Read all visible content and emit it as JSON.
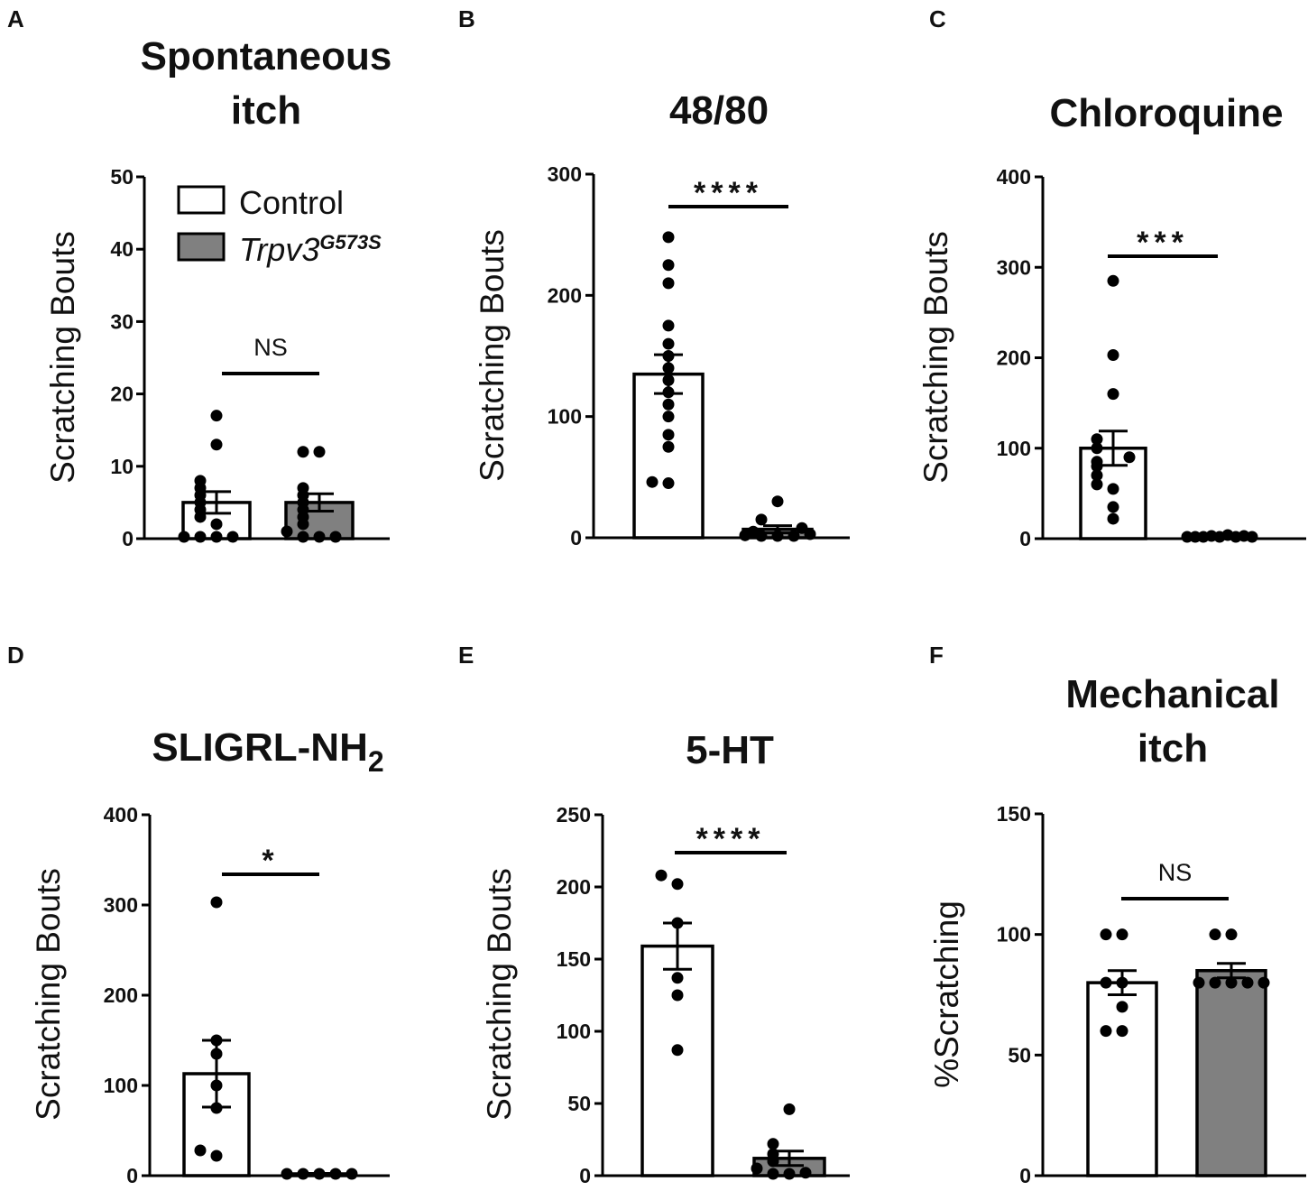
{
  "legend": {
    "control_label": "Control",
    "mutant_base": "Trpv3",
    "mutant_sup": "G573S",
    "colors": {
      "control": "#ffffff",
      "mutant": "#808080"
    }
  },
  "chart_data": [
    {
      "panel": "A",
      "type": "bar",
      "title_lines": [
        "Spontaneous",
        "itch"
      ],
      "ylabel": "Scratching Bouts",
      "ylim": [
        0,
        50
      ],
      "yticks": [
        0,
        10,
        20,
        30,
        40,
        50
      ],
      "categories": [
        "Control",
        "Trpv3G573S"
      ],
      "series": [
        {
          "name": "Control",
          "mean": 5,
          "sem": 1.5,
          "points": [
            0,
            0,
            0,
            0,
            2,
            3,
            4,
            5,
            6,
            7,
            8,
            13,
            17
          ]
        },
        {
          "name": "Trpv3G573S",
          "mean": 5,
          "sem": 1.2,
          "points": [
            0,
            0,
            0,
            1,
            2,
            3,
            4,
            5,
            6,
            7,
            12,
            12
          ]
        }
      ],
      "significance": "NS"
    },
    {
      "panel": "B",
      "type": "bar",
      "title_lines": [
        "48/80"
      ],
      "ylabel": "Scratching Bouts",
      "ylim": [
        0,
        300
      ],
      "yticks": [
        0,
        100,
        200,
        300
      ],
      "categories": [
        "Control",
        "Trpv3G573S"
      ],
      "series": [
        {
          "name": "Control",
          "mean": 135,
          "sem": 16,
          "points": [
            45,
            46,
            75,
            85,
            100,
            110,
            120,
            130,
            140,
            150,
            160,
            175,
            210,
            225,
            248
          ]
        },
        {
          "name": "Trpv3G573S",
          "mean": 7,
          "sem": 3,
          "points": [
            0,
            0,
            0,
            2,
            3,
            5,
            8,
            15,
            30
          ]
        }
      ],
      "significance": "****"
    },
    {
      "panel": "C",
      "type": "bar",
      "title_lines": [
        "Chloroquine"
      ],
      "ylabel": "Scratching Bouts",
      "ylim": [
        0,
        400
      ],
      "yticks": [
        0,
        100,
        200,
        300,
        400
      ],
      "categories": [
        "Control",
        "Trpv3G573S"
      ],
      "series": [
        {
          "name": "Control",
          "mean": 100,
          "sem": 19,
          "points": [
            22,
            35,
            55,
            60,
            70,
            80,
            85,
            90,
            100,
            110,
            160,
            203,
            285
          ]
        },
        {
          "name": "Trpv3G573S",
          "mean": 2,
          "sem": 1,
          "points": [
            0,
            0,
            1,
            1,
            2,
            2,
            3,
            3,
            4
          ]
        }
      ],
      "significance": "***"
    },
    {
      "panel": "D",
      "type": "bar",
      "title_lines": [
        "SLIGRL-NH"
      ],
      "title_sub": "2",
      "ylabel": "Scratching Bouts",
      "ylim": [
        0,
        400
      ],
      "yticks": [
        0,
        100,
        200,
        300,
        400
      ],
      "categories": [
        "Control",
        "Trpv3G573S"
      ],
      "series": [
        {
          "name": "Control",
          "mean": 113,
          "sem": 37,
          "points": [
            22,
            28,
            75,
            100,
            135,
            150,
            303
          ]
        },
        {
          "name": "Trpv3G573S",
          "mean": 2,
          "sem": 0.5,
          "points": [
            0,
            0,
            0,
            1,
            1
          ]
        }
      ],
      "significance": "*"
    },
    {
      "panel": "E",
      "type": "bar",
      "title_lines": [
        "5-HT"
      ],
      "ylabel": "Scratching Bouts",
      "ylim": [
        0,
        250
      ],
      "yticks": [
        0,
        50,
        100,
        150,
        200,
        250
      ],
      "categories": [
        "Control",
        "Trpv3G573S"
      ],
      "series": [
        {
          "name": "Control",
          "mean": 159,
          "sem": 16,
          "points": [
            87,
            125,
            137,
            175,
            202,
            208
          ]
        },
        {
          "name": "Trpv3G573S",
          "mean": 12,
          "sem": 5,
          "points": [
            0,
            1,
            2,
            5,
            10,
            15,
            22,
            46
          ]
        }
      ],
      "significance": "****"
    },
    {
      "panel": "F",
      "type": "bar",
      "title_lines": [
        "Mechanical",
        "itch"
      ],
      "ylabel": "%Scratching",
      "ylim": [
        0,
        150
      ],
      "yticks": [
        0,
        50,
        100,
        150
      ],
      "categories": [
        "Control",
        "Trpv3G573S"
      ],
      "series": [
        {
          "name": "Control",
          "mean": 80,
          "sem": 5,
          "points": [
            60,
            60,
            70,
            80,
            80,
            100,
            100
          ]
        },
        {
          "name": "Trpv3G573S",
          "mean": 85,
          "sem": 3,
          "points": [
            80,
            80,
            80,
            80,
            80,
            100,
            100
          ]
        }
      ],
      "significance": "NS"
    }
  ]
}
